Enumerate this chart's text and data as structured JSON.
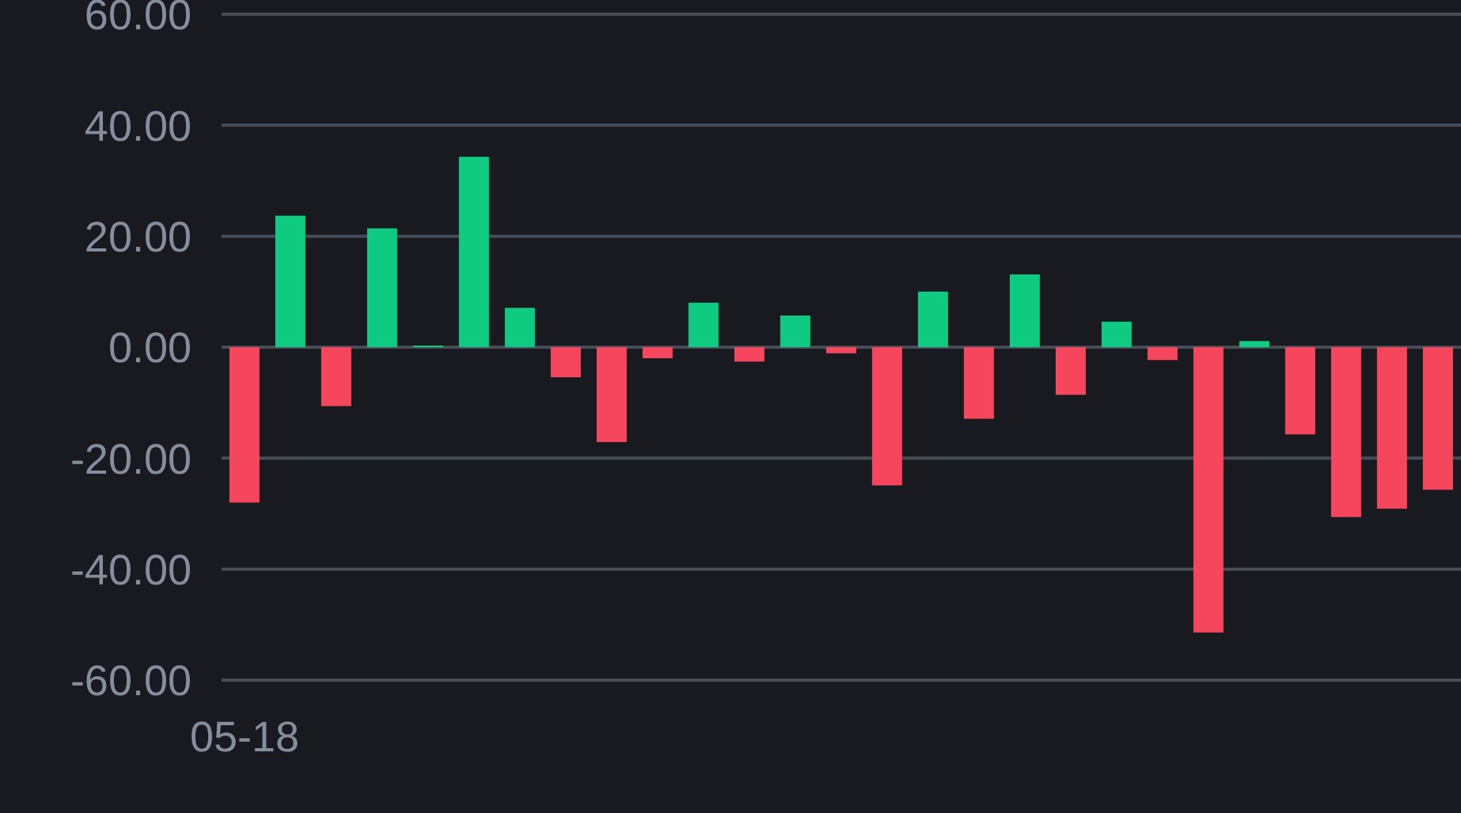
{
  "chart_data": {
    "type": "bar",
    "categories": [
      "05-18",
      null,
      null,
      null,
      null,
      null,
      null,
      null,
      null,
      null,
      null,
      null,
      null,
      null,
      null,
      null,
      null,
      null,
      null,
      null,
      null,
      null,
      null,
      null,
      null,
      null,
      null
    ],
    "values": [
      -28,
      23.7,
      -10.6,
      21.4,
      0.3,
      34.3,
      7.1,
      -5.4,
      -17.1,
      -2,
      8,
      -2.6,
      5.7,
      -1.1,
      -24.9,
      10,
      -12.9,
      13.1,
      -8.6,
      4.6,
      -2.3,
      -51.4,
      1.1,
      -15.7,
      -30.6,
      -29.1,
      -25.7
    ],
    "colors": [
      "#f6465d",
      "#0ecb81",
      "#f6465d",
      "#0ecb81",
      "#0ecb81",
      "#0ecb81",
      "#0ecb81",
      "#f6465d",
      "#f6465d",
      "#f6465d",
      "#0ecb81",
      "#f6465d",
      "#0ecb81",
      "#f6465d",
      "#f6465d",
      "#0ecb81",
      "#f6465d",
      "#0ecb81",
      "#f6465d",
      "#0ecb81",
      "#f6465d",
      "#f6465d",
      "#0ecb81",
      "#f6465d",
      "#f6465d",
      "#f6465d",
      "#f6465d"
    ],
    "ylim": [
      -60,
      60
    ],
    "yticks": [
      {
        "value": -60,
        "label": "-60.00"
      },
      {
        "value": -40,
        "label": "-40.00"
      },
      {
        "value": -20,
        "label": "-20.00"
      },
      {
        "value": 0,
        "label": "0.00"
      },
      {
        "value": 20,
        "label": "20.00"
      },
      {
        "value": 40,
        "label": "40.00"
      },
      {
        "value": 60,
        "label": "60.00"
      }
    ],
    "grid": "y"
  }
}
